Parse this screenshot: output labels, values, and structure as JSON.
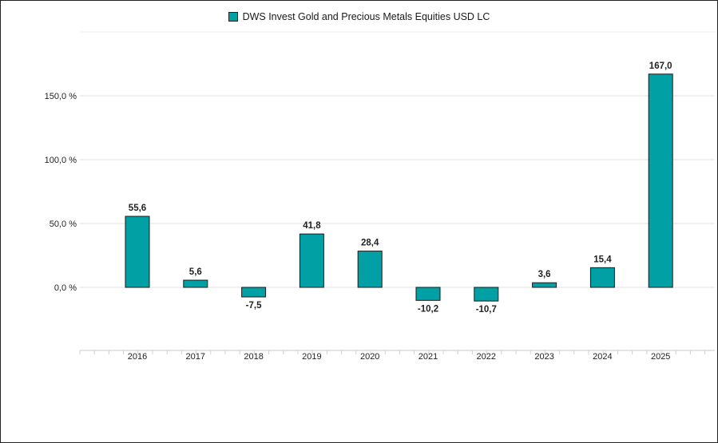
{
  "chart_data": {
    "type": "bar",
    "legend": "DWS Invest Gold and Precious Metals Equities USD LC",
    "categories": [
      "2016",
      "2017",
      "2018",
      "2019",
      "2020",
      "2021",
      "2022",
      "2023",
      "2024",
      "2025"
    ],
    "values": [
      55.6,
      5.6,
      -7.5,
      41.8,
      28.4,
      -10.2,
      -10.7,
      3.6,
      15.4,
      167.0
    ],
    "value_labels": [
      "55,6",
      "5,6",
      "-7,5",
      "41,8",
      "28,4",
      "-10,2",
      "-10,7",
      "3,6",
      "15,4",
      "167,0"
    ],
    "yticks": [
      0,
      50,
      100,
      150
    ],
    "ytick_labels": [
      "0,0 %",
      "50,0 %",
      "100,0 %",
      "150,0 %"
    ],
    "ylim": [
      -50,
      200
    ],
    "grid": true,
    "legend_position": "top-center",
    "bar_color": "#00a0a5"
  }
}
